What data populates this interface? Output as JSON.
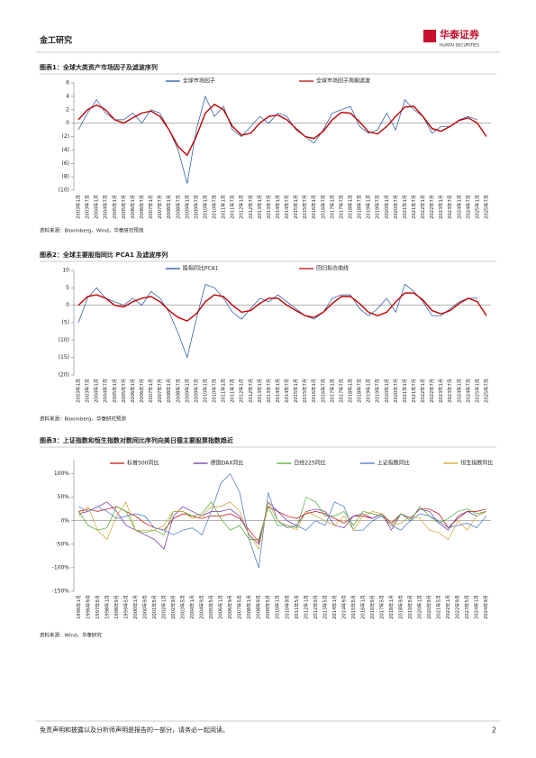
{
  "header": {
    "section": "金工研究",
    "logo": "华泰证券",
    "logo_en": "HUATAI SECURITIES"
  },
  "footer": {
    "disclaimer": "免责声明和披露以及分析师声明是报告的一部分，请务必一起阅读。",
    "page": "2"
  },
  "chart_data": [
    {
      "type": "line",
      "title": "图表1：全球大类资产市场因子及滤波序列",
      "source": "资料来源：Bloomberg，Wind，华泰研究预测",
      "categories": [
        "2003年1月",
        "2003年7月",
        "2004年1月",
        "2004年7月",
        "2005年1月",
        "2005年7月",
        "2006年1月",
        "2006年7月",
        "2007年1月",
        "2007年7月",
        "2008年1月",
        "2008年7月",
        "2009年1月",
        "2009年7月",
        "2010年1月",
        "2010年7月",
        "2011年1月",
        "2011年7月",
        "2012年1月",
        "2012年7月",
        "2013年1月",
        "2013年7月",
        "2014年1月",
        "2014年7月",
        "2015年1月",
        "2015年7月",
        "2016年1月",
        "2016年7月",
        "2017年1月",
        "2017年7月",
        "2018年1月",
        "2018年7月",
        "2019年1月",
        "2019年7月",
        "2020年1月",
        "2020年7月",
        "2021年1月",
        "2021年7月",
        "2022年1月",
        "2022年7月",
        "2023年1月",
        "2023年7月",
        "2024年1月",
        "2024年7月",
        "2025年1月",
        "2025年7月"
      ],
      "series": [
        {
          "name": "全球市场因子",
          "color": "#1f4e9c",
          "values": [
            -1,
            1.5,
            3.5,
            1.5,
            0.5,
            0.5,
            1.5,
            0,
            2,
            1.5,
            -1,
            -4,
            -9,
            -1,
            4,
            1,
            2.5,
            -1,
            -2,
            -0.5,
            1,
            0,
            1.5,
            1,
            -1,
            -2,
            -3,
            -1,
            1.5,
            2,
            2.5,
            -0.5,
            -1.5,
            -1,
            1.5,
            -1,
            3.5,
            2,
            1,
            -1.5,
            -0.5,
            -0.5,
            0.5,
            1,
            0.5,
            null
          ]
        },
        {
          "name": "全球市场因子周期滤波",
          "color": "#c00000",
          "values": [
            0.5,
            2,
            2.7,
            2,
            0.5,
            0,
            0.8,
            1.5,
            1.8,
            1,
            -1,
            -3.5,
            -4.8,
            -2,
            1.5,
            2.8,
            2,
            -0.5,
            -1.8,
            -1.5,
            0,
            1,
            1.2,
            0.5,
            -0.8,
            -2,
            -2.3,
            -1.2,
            0.5,
            1.6,
            1.5,
            0.2,
            -1.3,
            -1.6,
            -0.5,
            1,
            2.4,
            2.5,
            1,
            -0.8,
            -1.2,
            -0.5,
            0.4,
            0.8,
            0,
            -2
          ]
        }
      ],
      "ylim": [
        -10,
        6
      ],
      "yticks": [
        6,
        4,
        2,
        0,
        {
          "value": -2,
          "label": "(2)"
        },
        {
          "value": -4,
          "label": "(4)"
        },
        {
          "value": -6,
          "label": "(6)"
        },
        {
          "value": -8,
          "label": "(8)"
        },
        {
          "value": -10,
          "label": "(10)"
        }
      ]
    },
    {
      "type": "line",
      "title": "图表2：全球主要股指同比 PCA1 及滤波序列",
      "source": "资料来源：Bloomberg，华泰研究预测",
      "categories": [
        "2003年1月",
        "2003年7月",
        "2004年1月",
        "2004年7月",
        "2005年1月",
        "2005年7月",
        "2006年1月",
        "2006年7月",
        "2007年1月",
        "2007年7月",
        "2008年1月",
        "2008年7月",
        "2009年1月",
        "2009年7月",
        "2010年1月",
        "2010年7月",
        "2011年1月",
        "2011年7月",
        "2012年1月",
        "2012年7月",
        "2013年1月",
        "2013年7月",
        "2014年1月",
        "2014年7月",
        "2015年1月",
        "2015年7月",
        "2016年1月",
        "2016年7月",
        "2017年1月",
        "2017年7月",
        "2018年1月",
        "2018年7月",
        "2019年1月",
        "2019年7月",
        "2020年1月",
        "2020年7月",
        "2021年1月",
        "2021年7月",
        "2022年1月",
        "2022年7月",
        "2023年1月",
        "2023年7月",
        "2024年1月",
        "2024年7月",
        "2025年1月",
        "2025年7月"
      ],
      "series": [
        {
          "name": "股指同比PCA1",
          "color": "#1f4e9c",
          "values": [
            -5,
            2,
            5,
            2,
            1,
            0,
            2,
            0,
            4,
            2,
            -2,
            -8,
            -15,
            -4,
            6,
            5,
            2,
            -2,
            -4,
            -1,
            2,
            1,
            3,
            1,
            -1,
            -3,
            -4,
            -2,
            2,
            3,
            3,
            -1,
            -3,
            -1,
            2,
            -2,
            6,
            4,
            1,
            -3,
            -3,
            -1,
            1,
            2,
            2,
            null
          ]
        },
        {
          "name": "回归拟合曲线",
          "color": "#c00000",
          "values": [
            0,
            2.5,
            3,
            2,
            0,
            -0.5,
            1,
            2,
            2.5,
            1,
            -1.5,
            -3.5,
            -4.5,
            -2.5,
            1,
            3,
            2.5,
            0,
            -2,
            -1.5,
            0.5,
            2,
            2,
            0,
            -1.5,
            -3,
            -3.5,
            -2,
            0.5,
            2.5,
            2.5,
            0.5,
            -2,
            -3,
            -2,
            1,
            3.5,
            3.5,
            1.5,
            -1.5,
            -2.5,
            -1.5,
            0.5,
            2,
            1,
            -3
          ]
        }
      ],
      "ylim": [
        -20,
        10
      ],
      "yticks": [
        10,
        5,
        0,
        {
          "value": -5,
          "label": "(5)"
        },
        {
          "value": -10,
          "label": "(10)"
        },
        {
          "value": -15,
          "label": "(15)"
        },
        {
          "value": -20,
          "label": "(20)"
        }
      ]
    },
    {
      "type": "line",
      "title": "图表3：上证指数和恒生指数对数同比序列向美日德主要股票指数趋近",
      "source": "资料来源：Wind，华泰研究",
      "categories": [
        "1996年1月",
        "1996年9月",
        "1997年5月",
        "1998年1月",
        "1998年9月",
        "1999年5月",
        "2000年1月",
        "2000年9月",
        "2001年5月",
        "2002年1月",
        "2002年9月",
        "2003年5月",
        "2004年1月",
        "2004年9月",
        "2005年5月",
        "2006年1月",
        "2006年9月",
        "2007年5月",
        "2008年1月",
        "2008年9月",
        "2009年5月",
        "2010年1月",
        "2010年9月",
        "2011年5月",
        "2012年1月",
        "2012年9月",
        "2013年5月",
        "2014年1月",
        "2014年9月",
        "2015年5月",
        "2016年1月",
        "2016年9月",
        "2017年5月",
        "2018年1月",
        "2018年9月",
        "2019年5月",
        "2020年1月",
        "2020年9月",
        "2021年5月",
        "2022年1月",
        "2022年9月",
        "2023年5月",
        "2024年1月",
        "2024年9月"
      ],
      "series": [
        {
          "name": "标普500同比",
          "color": "#c00000",
          "values": [
            20,
            25,
            20,
            25,
            30,
            20,
            10,
            -5,
            -15,
            -20,
            5,
            15,
            10,
            5,
            10,
            10,
            15,
            5,
            -20,
            -45,
            30,
            20,
            10,
            5,
            15,
            20,
            15,
            5,
            -5,
            10,
            10,
            5,
            15,
            -5,
            15,
            5,
            25,
            25,
            15,
            -15,
            5,
            20,
            20,
            25
          ]
        },
        {
          "name": "德国DAX同比",
          "color": "#7030a0",
          "values": [
            15,
            20,
            30,
            40,
            20,
            -10,
            -20,
            -30,
            -40,
            -60,
            10,
            30,
            20,
            10,
            20,
            20,
            25,
            10,
            -30,
            -50,
            40,
            20,
            0,
            -10,
            20,
            25,
            20,
            -10,
            -15,
            10,
            15,
            5,
            15,
            -20,
            15,
            5,
            25,
            20,
            -5,
            -20,
            10,
            20,
            10,
            20
          ]
        },
        {
          "name": "日经225同比",
          "color": "#4ea72e",
          "values": [
            20,
            -10,
            -20,
            -15,
            30,
            20,
            -20,
            -25,
            -20,
            -30,
            20,
            20,
            10,
            15,
            40,
            5,
            -20,
            -10,
            -40,
            -40,
            30,
            -10,
            -10,
            -15,
            50,
            40,
            10,
            10,
            20,
            -10,
            20,
            15,
            10,
            -10,
            15,
            0,
            30,
            10,
            -5,
            5,
            20,
            25,
            15,
            20
          ]
        },
        {
          "name": "上证指数同比",
          "color": "#4472c4",
          "values": [
            30,
            20,
            30,
            20,
            5,
            10,
            15,
            10,
            -15,
            -20,
            -30,
            -20,
            -15,
            -30,
            20,
            80,
            100,
            60,
            -40,
            -100,
            60,
            0,
            -15,
            -10,
            -20,
            0,
            -10,
            40,
            30,
            -20,
            -20,
            0,
            10,
            -10,
            -20,
            0,
            15,
            10,
            0,
            -15,
            -10,
            -5,
            -15,
            10
          ]
        },
        {
          "name": "恒生指数同比",
          "color": "#c9a227",
          "values": [
            10,
            30,
            -20,
            -40,
            10,
            40,
            -20,
            -20,
            -20,
            -10,
            20,
            20,
            5,
            10,
            30,
            30,
            40,
            20,
            -30,
            -60,
            40,
            0,
            -10,
            -20,
            20,
            10,
            0,
            -10,
            10,
            -20,
            10,
            20,
            15,
            -10,
            -5,
            10,
            5,
            -20,
            -25,
            -40,
            0,
            -20,
            10,
            20
          ]
        }
      ],
      "ylim": [
        -150,
        130
      ],
      "yticks": [
        {
          "value": 100,
          "label": "100%"
        },
        {
          "value": 50,
          "label": "50%"
        },
        {
          "value": 0,
          "label": "0%"
        },
        {
          "value": -50,
          "label": "-50%"
        },
        {
          "value": -100,
          "label": "-100%"
        },
        {
          "value": -150,
          "label": "-150%"
        }
      ]
    }
  ]
}
